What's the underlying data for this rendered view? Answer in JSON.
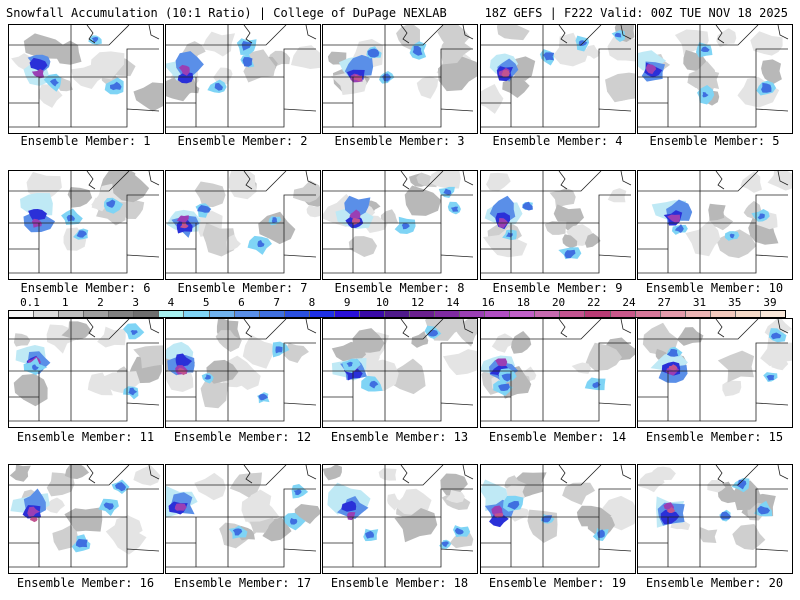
{
  "header": {
    "title_left": "Snowfall Accumulation (10:1 Ratio) | College of DuPage NEXLAB",
    "title_right": "18Z GEFS | F222 Valid: 00Z TUE NOV 18 2025"
  },
  "members": [
    {
      "label": "Ensemble Member: 1"
    },
    {
      "label": "Ensemble Member: 2"
    },
    {
      "label": "Ensemble Member: 3"
    },
    {
      "label": "Ensemble Member: 4"
    },
    {
      "label": "Ensemble Member: 5"
    },
    {
      "label": "Ensemble Member: 6"
    },
    {
      "label": "Ensemble Member: 7"
    },
    {
      "label": "Ensemble Member: 8"
    },
    {
      "label": "Ensemble Member: 9"
    },
    {
      "label": "Ensemble Member: 10"
    },
    {
      "label": "Ensemble Member: 11"
    },
    {
      "label": "Ensemble Member: 12"
    },
    {
      "label": "Ensemble Member: 13"
    },
    {
      "label": "Ensemble Member: 14"
    },
    {
      "label": "Ensemble Member: 15"
    },
    {
      "label": "Ensemble Member: 16"
    },
    {
      "label": "Ensemble Member: 17"
    },
    {
      "label": "Ensemble Member: 18"
    },
    {
      "label": "Ensemble Member: 19"
    },
    {
      "label": "Ensemble Member: 20"
    }
  ],
  "colorbar": {
    "labels": [
      "0.1",
      "1",
      "2",
      "3",
      "4",
      "5",
      "6",
      "7",
      "8",
      "9",
      "10",
      "12",
      "14",
      "16",
      "18",
      "20",
      "22",
      "24",
      "27",
      "31",
      "35",
      "39"
    ],
    "colors": [
      "#f4f4f4",
      "#d9d9d9",
      "#bdbdbd",
      "#9e9e9e",
      "#808080",
      "#6e6e6e",
      "#a6f0f0",
      "#7fd4f5",
      "#6fb2ee",
      "#5a8fe8",
      "#3f6fe0",
      "#2a4fe0",
      "#1e30e6",
      "#2a10d8",
      "#3a0aa8",
      "#4f1a8a",
      "#6a1f8f",
      "#7f2aa0",
      "#9a3fb4",
      "#b04ec2",
      "#c060c8",
      "#c76ab0",
      "#c25490",
      "#b83b74",
      "#c9588a",
      "#d8789a",
      "#e39aaa",
      "#ecb4b4",
      "#f2c8bc",
      "#f6dac8",
      "#f9e6d8"
    ]
  }
}
